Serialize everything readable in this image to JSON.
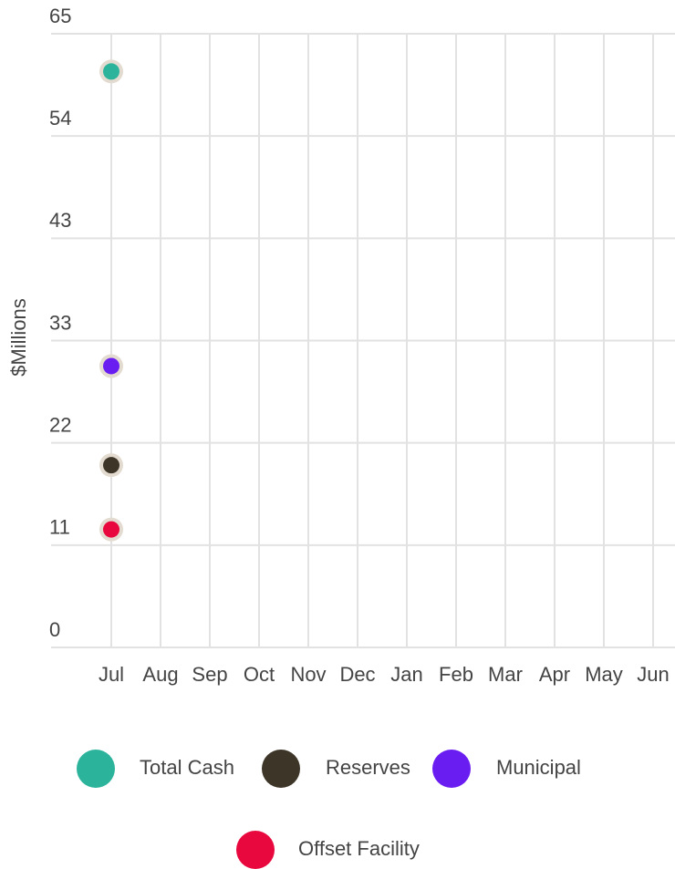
{
  "chart_data": {
    "type": "line",
    "y_label": "$Millions",
    "categories": [
      "Jul",
      "Aug",
      "Sep",
      "Oct",
      "Nov",
      "Dec",
      "Jan",
      "Feb",
      "Mar",
      "Apr",
      "May",
      "Jun"
    ],
    "series": [
      {
        "name": "Total Cash",
        "color": "#2bb39b",
        "values": [
          61.0,
          null,
          null,
          null,
          null,
          null,
          null,
          null,
          null,
          null,
          null,
          null
        ]
      },
      {
        "name": "Reserves",
        "color": "#3d3528",
        "values": [
          19.3,
          null,
          null,
          null,
          null,
          null,
          null,
          null,
          null,
          null,
          null,
          null
        ]
      },
      {
        "name": "Municipal",
        "color": "#6a1df0",
        "values": [
          29.8,
          null,
          null,
          null,
          null,
          null,
          null,
          null,
          null,
          null,
          null,
          null
        ]
      },
      {
        "name": "Offset Facility",
        "color": "#e8083e",
        "values": [
          12.5,
          null,
          null,
          null,
          null,
          null,
          null,
          null,
          null,
          null,
          null,
          null
        ]
      }
    ],
    "ylim": [
      0,
      65
    ],
    "yticks": [
      0,
      {
        "value": 10.833,
        "label": "11"
      },
      {
        "value": 21.667,
        "label": "22"
      },
      {
        "value": 32.5,
        "label": "33"
      },
      {
        "value": 43.333,
        "label": "43"
      },
      {
        "value": 54.167,
        "label": "54"
      },
      65
    ],
    "grid": true
  }
}
